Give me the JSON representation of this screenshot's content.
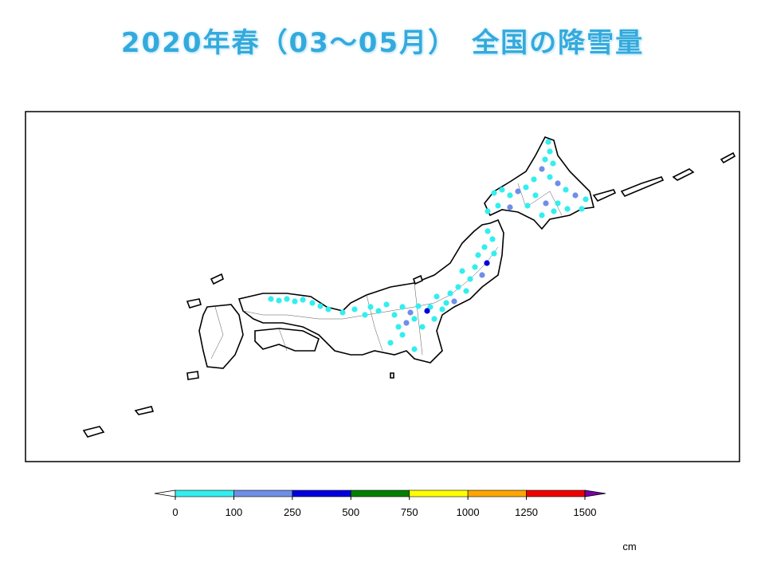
{
  "title": "2020年春（03～05月）　全国の降雪量",
  "colorbar": {
    "ticks": [
      0,
      100,
      250,
      500,
      750,
      1000,
      1250,
      1500
    ],
    "colors": [
      "#33eeee",
      "#6f8fe6",
      "#0000dd",
      "#008000",
      "#ffff00",
      "#ffa500",
      "#ee0000"
    ],
    "under_color": "#ffffff",
    "over_color": "#7a00a8",
    "unit": "cm"
  }
}
